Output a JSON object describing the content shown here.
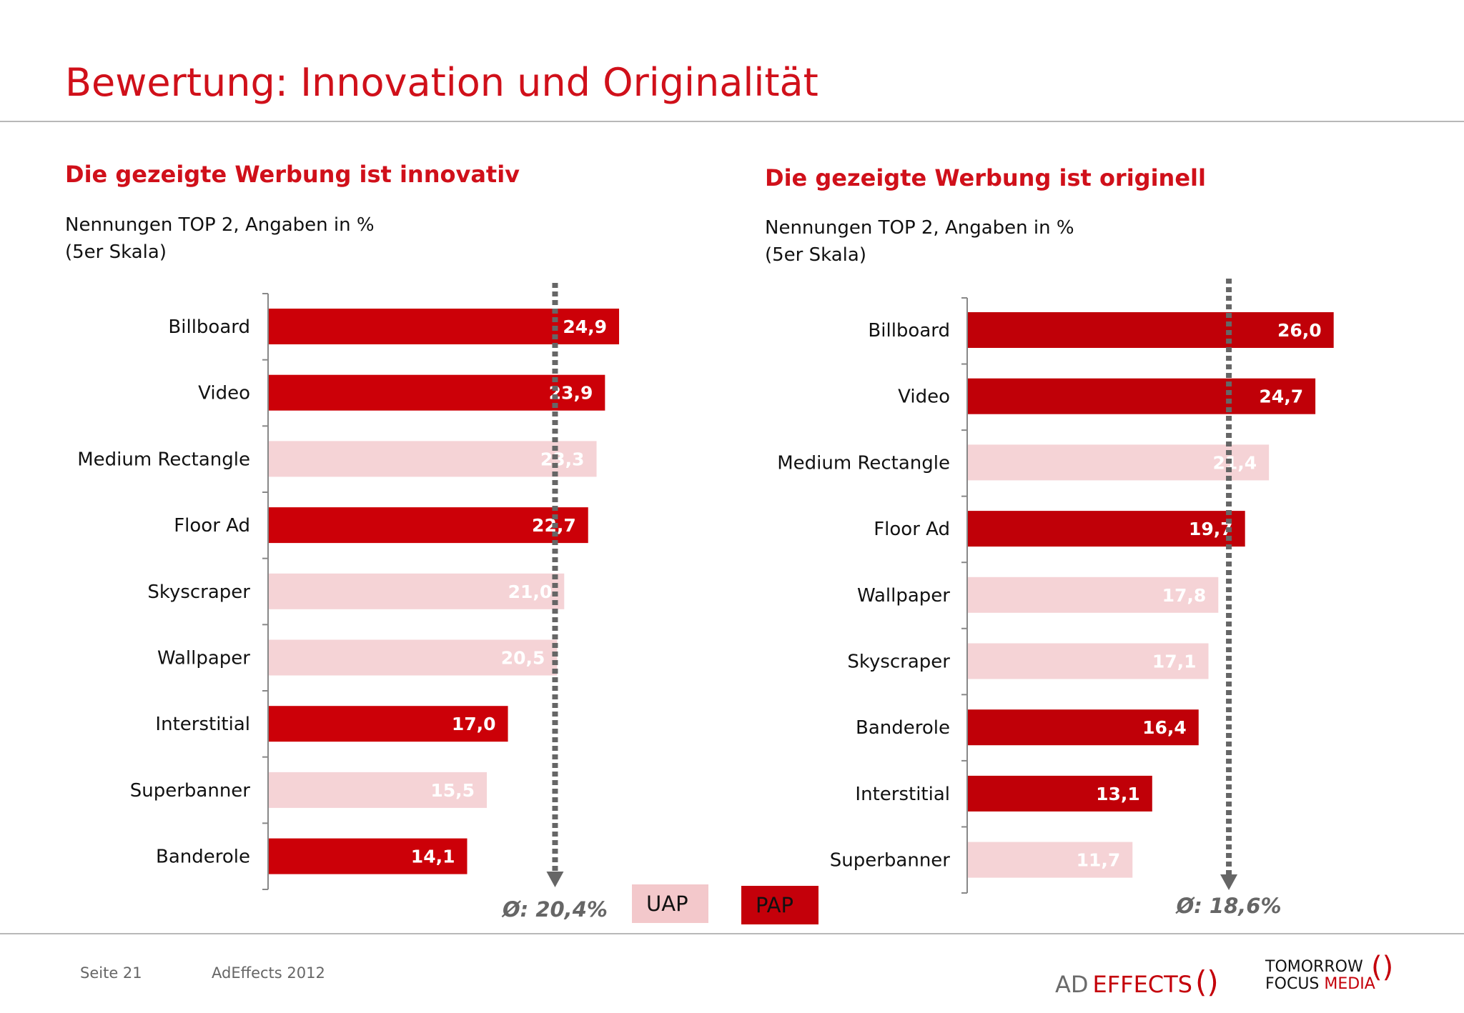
{
  "title": "Bewertung: Innovation und Originalität",
  "colors": {
    "title": "#d0101a",
    "pap": "#c4000a",
    "uap": "#f5d3d6",
    "average_line": "#666666"
  },
  "legend": {
    "uap": "UAP",
    "pap": "PAP"
  },
  "footer": {
    "page": "Seite 21",
    "source": "AdEffects 2012"
  },
  "logos": {
    "adeffects": {
      "part1": "AD",
      "part2": "EFFECTS"
    },
    "tomorrow": {
      "line1": "TOMORROW",
      "line2a": "FOCUS",
      "line2b": "MEDIA"
    }
  },
  "chart_data": [
    {
      "type": "bar",
      "orientation": "horizontal",
      "title": "Die gezeigte Werbung ist innovativ",
      "subtitle_lines": [
        "Nennungen TOP 2, Angaben in %",
        "(5er Skala)"
      ],
      "categories": [
        "Billboard",
        "Video",
        "Medium Rectangle",
        "Floor Ad",
        "Skyscraper",
        "Wallpaper",
        "Interstitial",
        "Superbanner",
        "Banderole"
      ],
      "values": [
        24.9,
        23.9,
        23.3,
        22.7,
        21.0,
        20.5,
        17.0,
        15.5,
        14.1
      ],
      "value_labels": [
        "24,9",
        "23,9",
        "23,3",
        "22,7",
        "21,0",
        "20,5",
        "17,0",
        "15,5",
        "14,1"
      ],
      "groups": [
        "PAP",
        "PAP",
        "UAP",
        "PAP",
        "UAP",
        "UAP",
        "PAP",
        "UAP",
        "PAP"
      ],
      "average": 20.4,
      "average_label": "Ø: 20,4%"
    },
    {
      "type": "bar",
      "orientation": "horizontal",
      "title": "Die gezeigte Werbung ist originell",
      "subtitle_lines": [
        "Nennungen TOP 2, Angaben in %",
        "(5er Skala)"
      ],
      "categories": [
        "Billboard",
        "Video",
        "Medium Rectangle",
        "Floor Ad",
        "Wallpaper",
        "Skyscraper",
        "Banderole",
        "Interstitial",
        "Superbanner"
      ],
      "values": [
        26.0,
        24.7,
        21.4,
        19.7,
        17.8,
        17.1,
        16.4,
        13.1,
        11.7
      ],
      "value_labels": [
        "26,0",
        "24,7",
        "21,4",
        "19,7",
        "17,8",
        "17,1",
        "16,4",
        "13,1",
        "11,7"
      ],
      "groups": [
        "PAP",
        "PAP",
        "UAP",
        "PAP",
        "UAP",
        "UAP",
        "PAP",
        "PAP",
        "UAP"
      ],
      "average": 18.6,
      "average_label": "Ø: 18,6%"
    }
  ]
}
